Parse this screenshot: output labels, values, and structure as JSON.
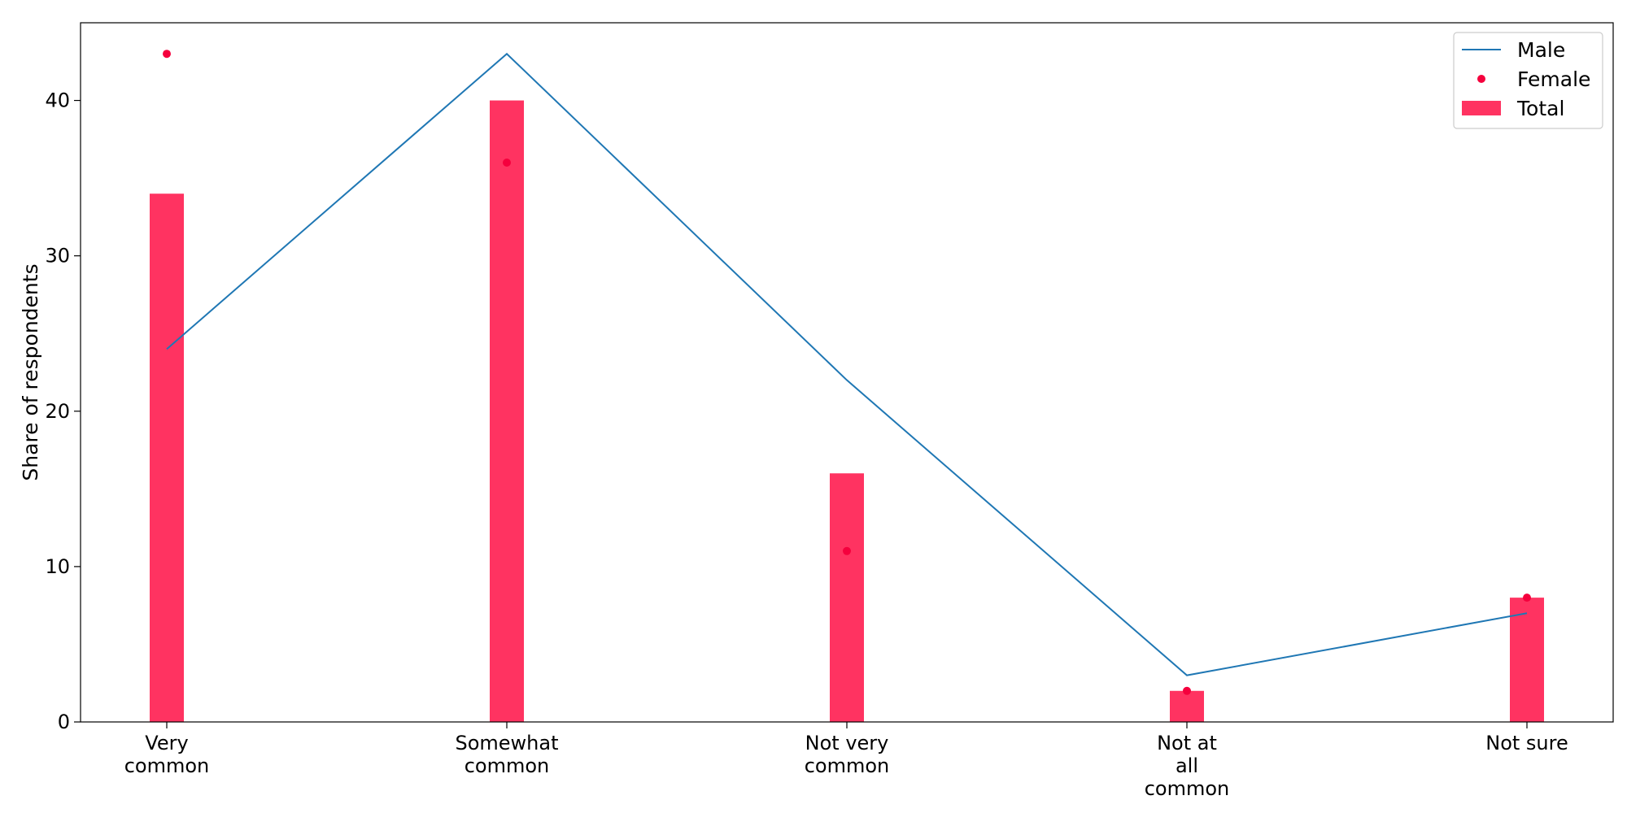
{
  "chart_data": {
    "type": "bar",
    "title": "",
    "xlabel": "",
    "ylabel": "Share of respondents",
    "ylim": [
      0,
      45
    ],
    "yticks": [
      0,
      10,
      20,
      30,
      40
    ],
    "grid": false,
    "legend_position": "top-right",
    "categories": [
      [
        "Very",
        "common"
      ],
      [
        "Somewhat",
        "common"
      ],
      [
        "Not very",
        "common"
      ],
      [
        "Not at",
        "all",
        "common"
      ],
      [
        "Not sure"
      ]
    ],
    "series": [
      {
        "name": "Male",
        "type": "line",
        "color": "#1f77b4",
        "values": [
          24,
          43,
          22,
          3,
          7
        ]
      },
      {
        "name": "Female",
        "type": "scatter",
        "color": "#f5003d",
        "values": [
          43,
          36,
          11,
          2,
          8
        ]
      },
      {
        "name": "Total",
        "type": "bar",
        "color": "#ff3361",
        "values": [
          34,
          40,
          16,
          2,
          8
        ]
      }
    ]
  }
}
